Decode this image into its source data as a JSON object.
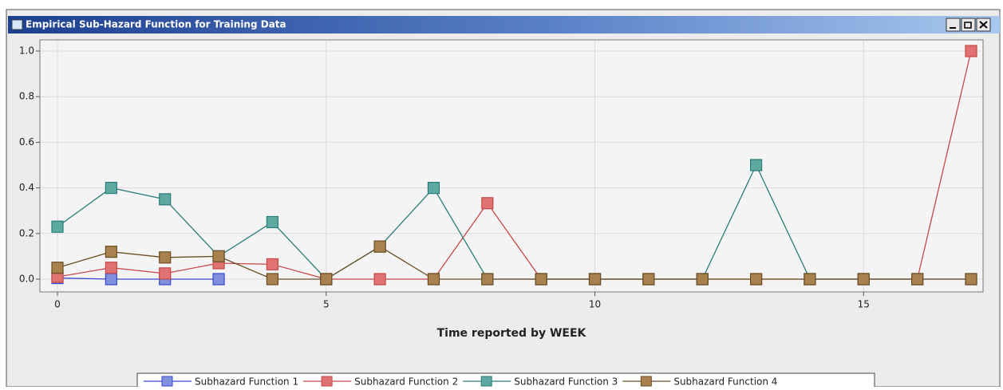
{
  "window": {
    "title": "Empirical Sub-Hazard Function for Training Data"
  },
  "chart_data": {
    "type": "line",
    "x": [
      0,
      1,
      2,
      3,
      4,
      5,
      6,
      7,
      8,
      9,
      10,
      11,
      12,
      13,
      14,
      15,
      16,
      17
    ],
    "xlim": [
      0,
      17
    ],
    "xticks": [
      0,
      5,
      10,
      15
    ],
    "ylim": [
      0,
      1
    ],
    "yticks": [
      {
        "value": 0,
        "label": "0.0"
      },
      {
        "value": 0.2,
        "label": "0.2"
      },
      {
        "value": 0.4,
        "label": "0.4"
      },
      {
        "value": 0.6,
        "label": "0.6"
      },
      {
        "value": 0.8,
        "label": "0.8"
      },
      {
        "value": 1,
        "label": "1.0"
      }
    ],
    "xlabel": "Time reported by WEEK",
    "grid": true,
    "series": [
      {
        "name": "Subhazard Function 1",
        "color": "#3848d0",
        "marker_color": "#8090dc",
        "values": [
          0.005,
          0,
          0,
          0,
          null,
          null,
          null,
          null,
          null,
          null,
          null,
          null,
          null,
          null,
          null,
          null,
          null,
          null
        ]
      },
      {
        "name": "Subhazard Function 2",
        "color": "#c84848",
        "marker_color": "#e07272",
        "values": [
          0.01,
          0.05,
          0.025,
          0.07,
          0.065,
          0,
          0,
          0,
          0.333,
          0,
          0,
          0,
          0,
          0,
          0,
          0,
          0,
          1
        ]
      },
      {
        "name": "Subhazard Function 3",
        "color": "#2a7d78",
        "marker_color": "#5ea8a2",
        "values": [
          0.23,
          0.4,
          0.35,
          0.1,
          0.25,
          0,
          0.143,
          0.4,
          0,
          0,
          0,
          0,
          0,
          0.5,
          0,
          0,
          0,
          0
        ]
      },
      {
        "name": "Subhazard Function 4",
        "color": "#6b4e24",
        "marker_color": "#a8814f",
        "values": [
          0.05,
          0.12,
          0.095,
          0.1,
          0,
          0,
          0.143,
          0,
          0,
          0,
          0,
          0,
          0,
          0,
          0,
          0,
          0,
          0
        ]
      }
    ]
  }
}
